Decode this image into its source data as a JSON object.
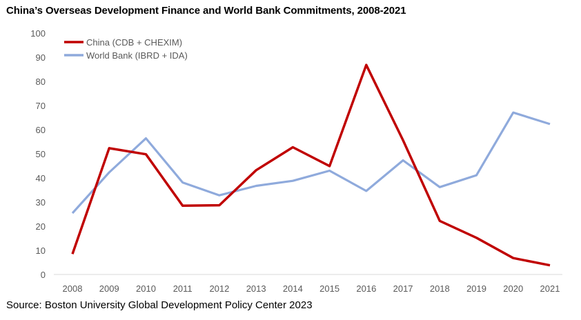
{
  "chart_data": {
    "type": "line",
    "title": "China’s Overseas Development Finance and World Bank Commitments, 2008-2021",
    "source": "Source: Boston University Global Development Policy Center 2023",
    "xlabel": "",
    "ylabel": "",
    "categories": [
      "2008",
      "2009",
      "2010",
      "2011",
      "2012",
      "2013",
      "2014",
      "2015",
      "2016",
      "2017",
      "2018",
      "2019",
      "2020",
      "2021"
    ],
    "yticks": [
      "0",
      "10",
      "20",
      "30",
      "40",
      "50",
      "60",
      "70",
      "80",
      "90",
      "100"
    ],
    "ylim": [
      0,
      100
    ],
    "grid": false,
    "legend_position": "top-left",
    "series": [
      {
        "name": "China (CDB + CHEXIM)",
        "color": "#c00000",
        "values": [
          8.5,
          52.3,
          49.8,
          28.5,
          28.7,
          43.2,
          52.7,
          44.9,
          86.8,
          55.6,
          22.2,
          15.2,
          6.8,
          3.8
        ]
      },
      {
        "name": "World Bank (IBRD + IDA)",
        "color": "#8faadc",
        "values": [
          25.4,
          42.3,
          56.4,
          38.1,
          32.8,
          36.7,
          38.8,
          43.0,
          34.6,
          47.3,
          36.2,
          41.1,
          67.1,
          62.3
        ]
      }
    ]
  }
}
